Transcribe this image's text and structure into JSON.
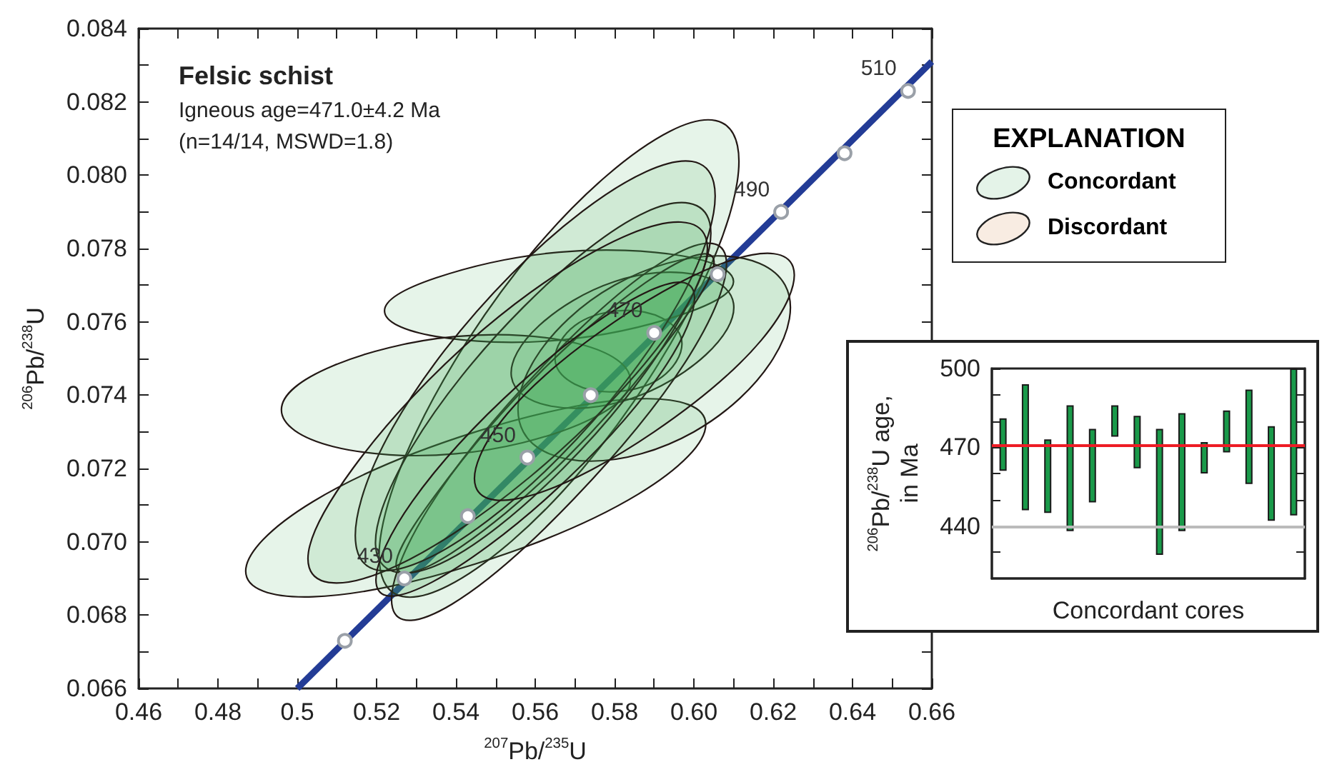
{
  "chart_data": [
    {
      "type": "area",
      "xlabel": "$^{207}$Pb/$^{235}$U",
      "ylabel": "$^{206}$Pb/$^{238}$U",
      "xlim": [
        0.46,
        0.66
      ],
      "ylim": [
        0.066,
        0.084
      ],
      "xticks": [
        0.46,
        {
          "value": 0.47,
          "label": null
        },
        0.48,
        {
          "value": 0.49,
          "label": null
        },
        0.5,
        {
          "value": 0.51,
          "label": null
        },
        0.52,
        {
          "value": 0.53,
          "label": null
        },
        0.54,
        {
          "value": 0.55,
          "label": null
        },
        0.56,
        {
          "value": 0.57,
          "label": null
        },
        0.58,
        {
          "value": 0.59,
          "label": null
        },
        {
          "value": 0.6,
          "label": "0.60"
        },
        {
          "value": 0.61,
          "label": null
        },
        0.62,
        {
          "value": 0.63,
          "label": null
        },
        0.64,
        {
          "value": 0.65,
          "label": null
        },
        0.66
      ],
      "yticks": [
        0.066,
        {
          "value": 0.067,
          "label": null
        },
        0.068,
        {
          "value": 0.069,
          "label": null
        },
        {
          "value": 0.07,
          "label": "0.070"
        },
        {
          "value": 0.071,
          "label": null
        },
        0.072,
        {
          "value": 0.073,
          "label": null
        },
        0.074,
        {
          "value": 0.075,
          "label": null
        },
        0.076,
        {
          "value": 0.077,
          "label": null
        },
        0.078,
        {
          "value": 0.079,
          "label": null
        },
        {
          "value": 0.08,
          "label": "0.080"
        },
        {
          "value": 0.081,
          "label": null
        },
        0.082,
        {
          "value": 0.083,
          "label": null
        },
        0.084
      ],
      "annotations": [
        "Felsic schist",
        "Igneous age=471.0±4.2 Ma",
        "(n=14/14, MSWD=1.8)",
        {
          "text": "430",
          "x": 0.527,
          "y": 0.069
        },
        {
          "text": "450",
          "x": 0.558,
          "y": 0.0723
        },
        {
          "text": "470",
          "x": 0.59,
          "y": 0.0757
        },
        {
          "text": "490",
          "x": 0.622,
          "y": 0.079
        },
        {
          "text": "510",
          "x": 0.654,
          "y": 0.0823
        }
      ],
      "series": [
        {
          "type": "line",
          "marker": "none",
          "color": "#233c96",
          "x": [
            0.5,
            0.66
          ],
          "values": [
            0.066,
            0.0831
          ]
        },
        {
          "type": "area",
          "color": "#3ea957",
          "x": [
            0.611,
            0.594,
            0.56,
            0.53,
            0.521,
            0.538,
            0.572,
            0.602
          ],
          "values": [
            0.0808,
            0.0812,
            0.078,
            0.073,
            0.0692,
            0.0688,
            0.072,
            0.077
          ]
        },
        {
          "type": "area",
          "color": "#3ea957",
          "x": [
            0.603,
            0.586,
            0.545,
            0.504,
            0.487,
            0.504,
            0.545,
            0.586
          ],
          "values": [
            0.0732,
            0.0739,
            0.073,
            0.0711,
            0.0692,
            0.0685,
            0.0694,
            0.0713
          ]
        },
        {
          "type": "area",
          "color": "#3ea957",
          "x": [
            0.61,
            0.597,
            0.566,
            0.535,
            0.522,
            0.535,
            0.566,
            0.597
          ],
          "values": [
            0.0771,
            0.0778,
            0.0779,
            0.0772,
            0.0763,
            0.0756,
            0.0755,
            0.0762
          ]
        },
        {
          "type": "area",
          "color": "#3ea957",
          "x": [
            0.584,
            0.571,
            0.54,
            0.509,
            0.496,
            0.509,
            0.54,
            0.571
          ],
          "values": [
            0.0744,
            0.0754,
            0.0756,
            0.0748,
            0.0736,
            0.0726,
            0.0724,
            0.0732
          ]
        },
        {
          "type": "area",
          "color": "#3ea957",
          "x": [
            0.597,
            0.592,
            0.581,
            0.57,
            0.565,
            0.57,
            0.581,
            0.592
          ],
          "values": [
            0.0754,
            0.0761,
            0.0763,
            0.0759,
            0.075,
            0.0743,
            0.0741,
            0.0745
          ]
        },
        {
          "type": "area",
          "color": "#3ea957",
          "x": [
            0.61,
            0.6,
            0.58,
            0.561,
            0.554,
            0.564,
            0.584,
            0.603
          ],
          "values": [
            0.0765,
            0.0773,
            0.0771,
            0.0759,
            0.0745,
            0.0737,
            0.0739,
            0.0751
          ]
        },
        {
          "type": "area",
          "color": "#3ea957",
          "x": [
            0.623,
            0.606,
            0.58,
            0.56,
            0.557,
            0.574,
            0.6,
            0.62
          ],
          "values": [
            0.077,
            0.0778,
            0.077,
            0.075,
            0.073,
            0.0722,
            0.073,
            0.075
          ]
        },
        {
          "type": "area",
          "color": "#3ea957",
          "x": [
            0.608,
            0.593,
            0.562,
            0.533,
            0.524,
            0.539,
            0.57,
            0.599
          ],
          "values": [
            0.0778,
            0.0777,
            0.0748,
            0.0709,
            0.0682,
            0.0683,
            0.0712,
            0.0751
          ]
        },
        {
          "type": "area",
          "color": "#3ea957",
          "x": [
            0.605,
            0.591,
            0.562,
            0.535,
            0.525,
            0.539,
            0.568,
            0.595
          ],
          "values": [
            0.0777,
            0.0773,
            0.0747,
            0.0713,
            0.0693,
            0.0697,
            0.0723,
            0.0757
          ]
        },
        {
          "type": "area",
          "color": "#3ea957",
          "x": [
            0.604,
            0.588,
            0.557,
            0.529,
            0.52,
            0.536,
            0.567,
            0.595
          ],
          "values": [
            0.0787,
            0.079,
            0.0764,
            0.0726,
            0.0697,
            0.0694,
            0.072,
            0.0758
          ]
        },
        {
          "type": "area",
          "color": "#3ea957",
          "x": [
            0.605,
            0.588,
            0.554,
            0.524,
            0.515,
            0.532,
            0.566,
            0.596
          ],
          "values": [
            0.0798,
            0.0801,
            0.0773,
            0.0731,
            0.0698,
            0.0695,
            0.0723,
            0.0765
          ]
        },
        {
          "type": "area",
          "color": "#3ea957",
          "x": [
            0.603,
            0.584,
            0.547,
            0.514,
            0.503,
            0.522,
            0.559,
            0.593
          ],
          "values": [
            0.0783,
            0.0784,
            0.0758,
            0.072,
            0.0693,
            0.0692,
            0.0718,
            0.0756
          ]
        },
        {
          "type": "area",
          "color": "#3ea957",
          "x": [
            0.6,
            0.586,
            0.556,
            0.529,
            0.52,
            0.534,
            0.564,
            0.591
          ],
          "values": [
            0.0768,
            0.0767,
            0.0743,
            0.0711,
            0.0688,
            0.0689,
            0.0713,
            0.0745
          ]
        },
        {
          "type": "area",
          "color": "#3ea957",
          "x": [
            0.625,
            0.61,
            0.58,
            0.553,
            0.545,
            0.56,
            0.59,
            0.617
          ],
          "values": [
            0.0775,
            0.0777,
            0.076,
            0.0735,
            0.0715,
            0.0713,
            0.073,
            0.0755
          ]
        },
        {
          "type": "scatter",
          "marker": "circle",
          "color": "#9aa0a8",
          "x": [
            0.512,
            0.527,
            0.543,
            0.558,
            0.574,
            0.59,
            0.606,
            0.622,
            0.638,
            0.654
          ],
          "values": [
            0.0673,
            0.069,
            0.0707,
            0.0723,
            0.074,
            0.0757,
            0.0773,
            0.079,
            0.0806,
            0.0823
          ]
        }
      ]
    },
    {
      "type": "bar",
      "xlabel": "Concordant cores",
      "ylabel": "$^{206}$Pb/$^{238}$U age,\nin Ma",
      "categories": [
        null,
        null,
        null,
        null,
        null,
        null,
        null,
        null,
        null,
        null,
        null,
        null,
        null,
        null
      ],
      "ylim": [
        420,
        500
      ],
      "yticks": [
        {
          "value": 430,
          "label": null
        },
        440,
        {
          "value": 450,
          "label": null
        },
        {
          "value": 460,
          "label": null
        },
        470,
        {
          "value": 480,
          "label": null
        },
        {
          "value": 490,
          "label": null
        },
        500
      ],
      "series": [
        {
          "color": "#1a9a4a",
          "base": [
            461,
            446,
            445,
            438,
            449,
            474,
            462,
            429,
            438,
            460,
            468,
            456,
            442,
            444
          ],
          "values": [
            20,
            48,
            28,
            48,
            28,
            12,
            20,
            48,
            45,
            12,
            16,
            36,
            36,
            56
          ]
        }
      ],
      "ref_lines": [
        {
          "axis": "y",
          "value": 440,
          "color": "#bbbbbb"
        },
        {
          "axis": "y",
          "value": 471,
          "color": "#ee1c25"
        }
      ]
    },
    {
      "type": "other",
      "title": "EXPLANATION",
      "annotations": [
        "Concordant",
        "Discordant"
      ]
    }
  ]
}
